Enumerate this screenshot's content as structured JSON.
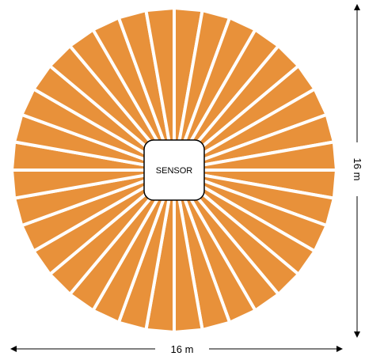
{
  "sensor": {
    "label": "SENSOR"
  },
  "dimensions": {
    "width_label": "16 m",
    "height_label": "16 m"
  },
  "coverage": {
    "segment_count": 36,
    "fill_color": "#E8913A",
    "gap_color": "#FFFFFF"
  },
  "colors": {
    "arrow": "#000000",
    "sensor_border": "#000000",
    "sensor_fill": "#FFFFFF"
  }
}
